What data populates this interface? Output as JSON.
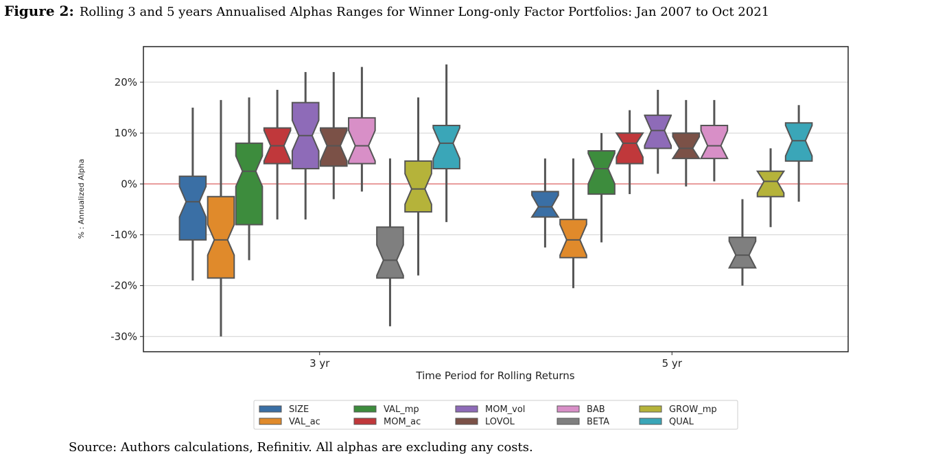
{
  "figure": {
    "label": "Figure 2:",
    "caption": "Rolling 3 and 5 years Annualised Alphas Ranges for Winner Long-only Factor Portfolios: Jan 2007 to Oct 2021",
    "source": "Source: Authors calculations, Refinitiv. All alphas are excluding any costs."
  },
  "chart_data": {
    "type": "boxplot",
    "notched": true,
    "xlabel": "Time Period for Rolling Returns",
    "ylabel": "% : Annualized Alpha",
    "ylim": [
      -33,
      27
    ],
    "yticks": [
      -30,
      -20,
      -10,
      0,
      10,
      20
    ],
    "ytick_labels": [
      "-30%",
      "-20%",
      "-10%",
      "0%",
      "10%",
      "20%"
    ],
    "categories": [
      "3 yr",
      "5 yr"
    ],
    "reference_line": {
      "y": 0,
      "color": "#e07b7b"
    },
    "grid": true,
    "legend_position": "bottom-center",
    "series": [
      {
        "name": "SIZE",
        "color": "#3a6fa5",
        "boxes": [
          {
            "whislo": -19,
            "q1": -11,
            "med": -3.5,
            "q3": 1.5,
            "whishi": 15
          },
          {
            "whislo": -12.5,
            "q1": -6.5,
            "med": -4.5,
            "q3": -1.5,
            "whishi": 5
          }
        ]
      },
      {
        "name": "VAL_ac",
        "color": "#e08a2b",
        "boxes": [
          {
            "whislo": -30,
            "q1": -18.5,
            "med": -11,
            "q3": -2.5,
            "whishi": 16.5
          },
          {
            "whislo": -20.5,
            "q1": -14.5,
            "med": -11,
            "q3": -7,
            "whishi": 5
          }
        ]
      },
      {
        "name": "VAL_mp",
        "color": "#3d8c3d",
        "boxes": [
          {
            "whislo": -15,
            "q1": -8,
            "med": 2.5,
            "q3": 8,
            "whishi": 17
          },
          {
            "whislo": -11.5,
            "q1": -2,
            "med": 3,
            "q3": 6.5,
            "whishi": 10
          }
        ]
      },
      {
        "name": "MOM_ac",
        "color": "#c0383b",
        "boxes": [
          {
            "whislo": -7,
            "q1": 4,
            "med": 7.5,
            "q3": 11,
            "whishi": 18.5
          },
          {
            "whislo": -2,
            "q1": 4,
            "med": 8,
            "q3": 10,
            "whishi": 14.5
          }
        ]
      },
      {
        "name": "MOM_vol",
        "color": "#8e6bb8",
        "boxes": [
          {
            "whislo": -7,
            "q1": 3,
            "med": 9.5,
            "q3": 16,
            "whishi": 22
          },
          {
            "whislo": 2,
            "q1": 7,
            "med": 10.5,
            "q3": 13.5,
            "whishi": 18.5
          }
        ]
      },
      {
        "name": "LOVOL",
        "color": "#7b5147",
        "boxes": [
          {
            "whislo": -3,
            "q1": 3.5,
            "med": 7.5,
            "q3": 11,
            "whishi": 22
          },
          {
            "whislo": -0.5,
            "q1": 5,
            "med": 7,
            "q3": 10,
            "whishi": 16.5
          }
        ]
      },
      {
        "name": "BAB",
        "color": "#d88fc7",
        "boxes": [
          {
            "whislo": -1.5,
            "q1": 4,
            "med": 7.5,
            "q3": 13,
            "whishi": 23
          },
          {
            "whislo": 0.5,
            "q1": 5,
            "med": 7.5,
            "q3": 11.5,
            "whishi": 16.5
          }
        ]
      },
      {
        "name": "BETA",
        "color": "#7f7f7f",
        "boxes": [
          {
            "whislo": -28,
            "q1": -18.5,
            "med": -15,
            "q3": -8.5,
            "whishi": 5
          },
          {
            "whislo": -20,
            "q1": -16.5,
            "med": -14,
            "q3": -10.5,
            "whishi": -3
          }
        ]
      },
      {
        "name": "GROW_mp",
        "color": "#b5b33a",
        "boxes": [
          {
            "whislo": -18,
            "q1": -5.5,
            "med": -1,
            "q3": 4.5,
            "whishi": 17
          },
          {
            "whislo": -8.5,
            "q1": -2.5,
            "med": 0.5,
            "q3": 2.5,
            "whishi": 7
          }
        ]
      },
      {
        "name": "QUAL",
        "color": "#3aa6b8",
        "boxes": [
          {
            "whislo": -7.5,
            "q1": 3,
            "med": 8,
            "q3": 11.5,
            "whishi": 23.5
          },
          {
            "whislo": -3.5,
            "q1": 4.5,
            "med": 8.5,
            "q3": 12,
            "whishi": 15.5
          }
        ]
      }
    ]
  }
}
